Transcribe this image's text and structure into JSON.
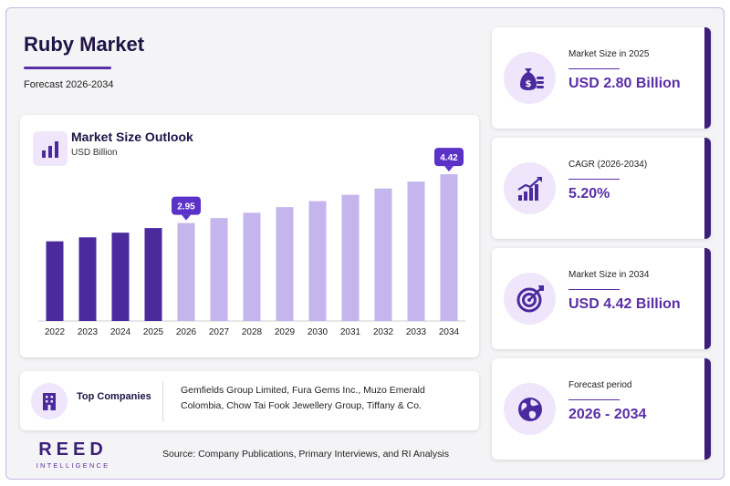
{
  "header": {
    "title": "Ruby Market",
    "subtitle": "Forecast 2026-2034"
  },
  "chart_header": {
    "title": "Market Size Outlook",
    "unit": "USD Billion"
  },
  "chart_data": {
    "type": "bar",
    "title": "Market Size Outlook",
    "ylabel": "USD Billion",
    "xlabel": "",
    "categories": [
      "2022",
      "2023",
      "2024",
      "2025",
      "2026",
      "2027",
      "2028",
      "2029",
      "2030",
      "2031",
      "2032",
      "2033",
      "2034"
    ],
    "values": [
      2.4,
      2.52,
      2.66,
      2.8,
      2.95,
      3.1,
      3.26,
      3.43,
      3.61,
      3.8,
      3.99,
      4.2,
      4.42
    ],
    "ylim": [
      0,
      5
    ],
    "grid": false,
    "historical_color": "#4b2a9e",
    "forecast_color": "#c4b5ec",
    "callout_color": "#5b32c8",
    "annotations": [
      {
        "category": "2026",
        "label": "2.95"
      },
      {
        "category": "2034",
        "label": "4.42"
      }
    ]
  },
  "companies": {
    "label": "Top Companies",
    "text": "Gemfields Group Limited, Fura Gems Inc., Muzo Emerald Colombia, Chow Tai Fook Jewellery Group, Tiffany & Co."
  },
  "logo": {
    "main": "REED",
    "sub": "INTELLIGENCE"
  },
  "source": "Source: Company Publications, Primary Interviews, and RI Analysis",
  "stats": [
    {
      "label": "Market Size in 2025",
      "value": "USD 2.80 Billion",
      "icon": "money-bag-icon"
    },
    {
      "label": "CAGR (2026-2034)",
      "value": "5.20%",
      "icon": "growth-chart-icon"
    },
    {
      "label": "Market Size in 2034",
      "value": "USD 4.42 Billion",
      "icon": "target-icon"
    },
    {
      "label": "Forecast period",
      "value": "2026 - 2034",
      "icon": "globe-icon"
    }
  ],
  "colors": {
    "accent": "#5a2ea6",
    "dark": "#3c1f78",
    "light": "#efe6fb"
  }
}
